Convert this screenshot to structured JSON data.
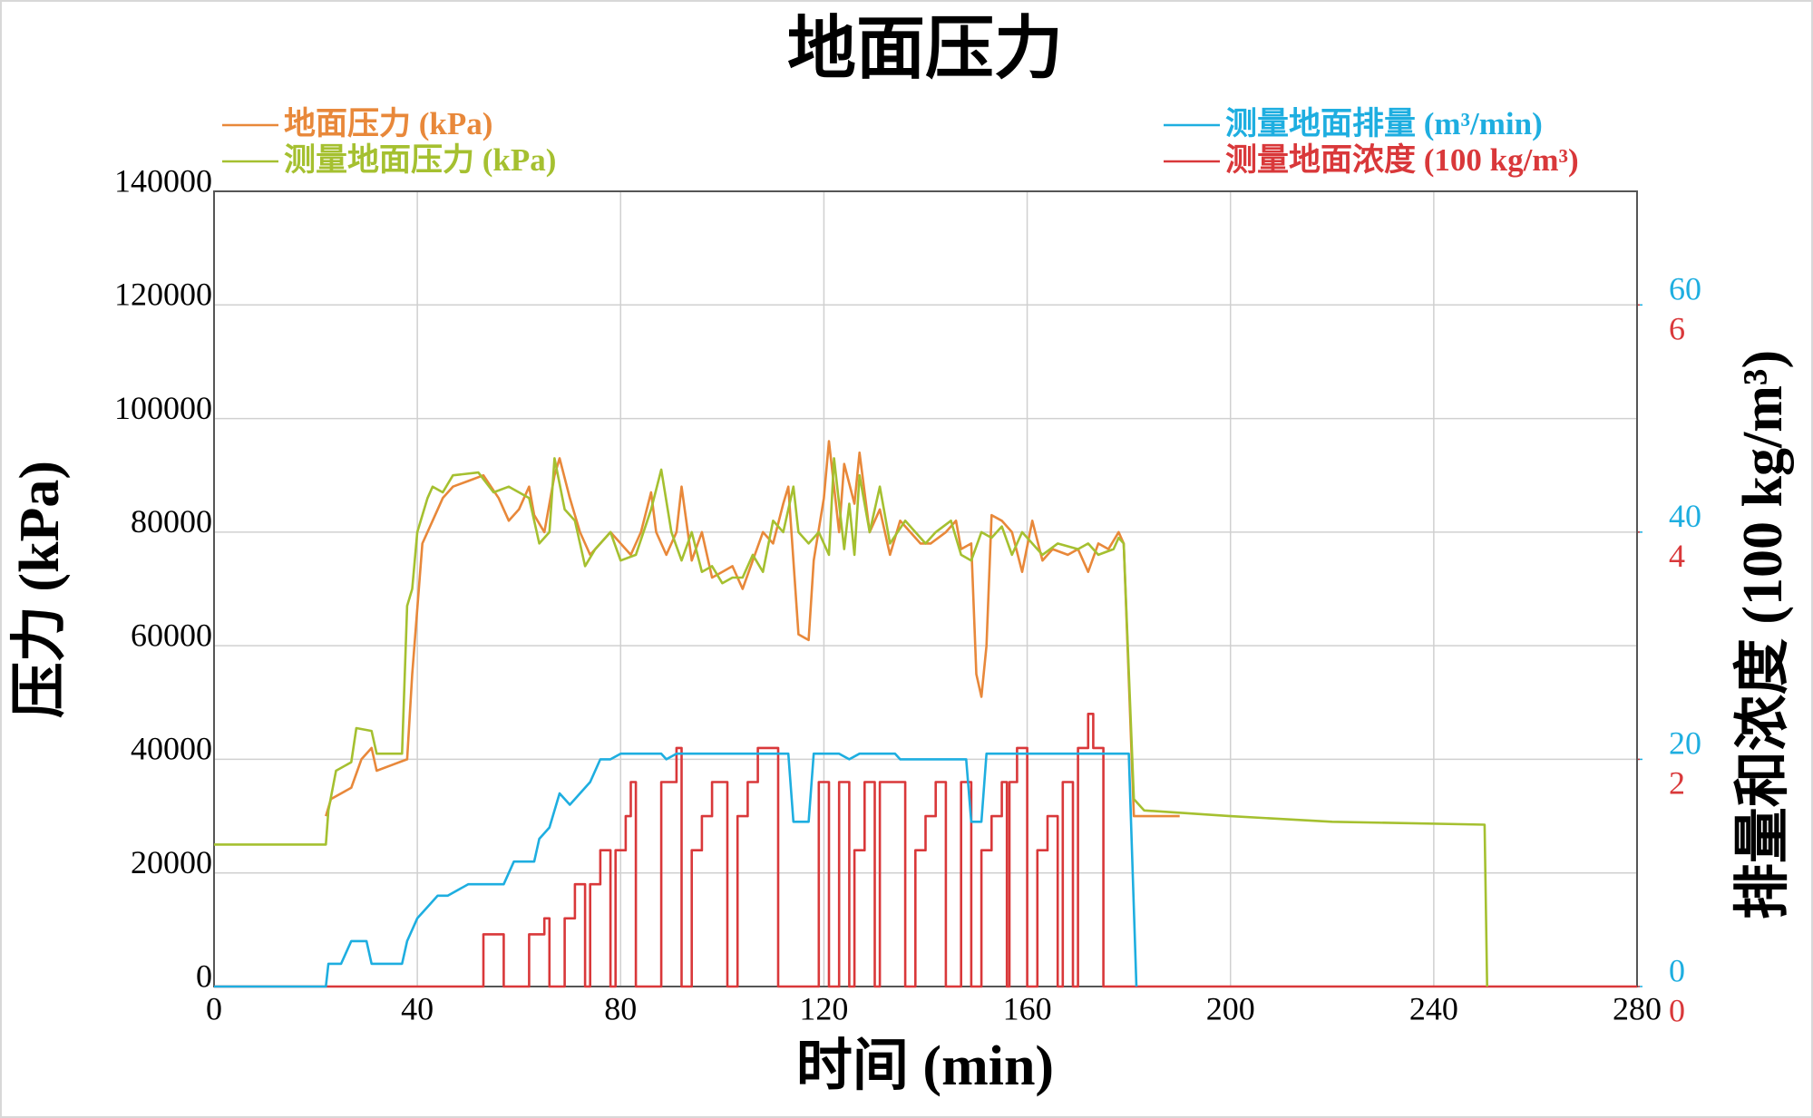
{
  "chart_data": {
    "type": "line",
    "title": "地面压力",
    "xlabel": "时间 (min)",
    "ylabel": "压力 (kPa)",
    "y2label": "排量和浓度 (100 kg/m³)",
    "xlim": [
      0,
      280
    ],
    "xticks": [
      0,
      40,
      80,
      120,
      160,
      200,
      240,
      280
    ],
    "ylim": [
      0,
      140000
    ],
    "yticks": [
      0,
      20000,
      40000,
      60000,
      80000,
      100000,
      120000,
      140000
    ],
    "y2lim": [
      0,
      70
    ],
    "y2ticks": [
      0,
      20,
      40,
      60
    ],
    "y3lim": [
      0,
      7
    ],
    "y3ticks": [
      0,
      2,
      4,
      6
    ],
    "grid": true,
    "series": [
      {
        "name": "测量地面浓度 (100 kg/m³)",
        "color": "#d9383a",
        "axis": "y3",
        "x": [
          0,
          53,
          53,
          57,
          57,
          62,
          62,
          65,
          65,
          66,
          66,
          69,
          69,
          71,
          71,
          73,
          73,
          74,
          74,
          76,
          76,
          78,
          78,
          79,
          79,
          81,
          81,
          82,
          82,
          83,
          83,
          88,
          88,
          91,
          91,
          92,
          92,
          94,
          94,
          96,
          96,
          98,
          98,
          101,
          101,
          103,
          103,
          105,
          105,
          107,
          107,
          111,
          111,
          119,
          119,
          121,
          121,
          123,
          123,
          125,
          125,
          126,
          126,
          128,
          128,
          130,
          130,
          131,
          131,
          136,
          136,
          138,
          138,
          140,
          140,
          142,
          142,
          144,
          144,
          147,
          147,
          149,
          149,
          151,
          151,
          153,
          153,
          155,
          155,
          156,
          156,
          156.5,
          156.5,
          158,
          158,
          160,
          160,
          162,
          162,
          164,
          164,
          166,
          166,
          167,
          167,
          169,
          169,
          170,
          170,
          172,
          172,
          173,
          173,
          175,
          175,
          280
        ],
        "values": [
          0,
          0,
          0.46,
          0.46,
          0,
          0,
          0.46,
          0.46,
          0.6,
          0.6,
          0,
          0,
          0.6,
          0.6,
          0.9,
          0.9,
          0,
          0,
          0.9,
          0.9,
          1.2,
          1.2,
          0,
          0,
          1.2,
          1.2,
          1.5,
          1.5,
          1.8,
          1.8,
          0,
          0,
          1.8,
          1.8,
          2.1,
          2.1,
          0,
          0,
          1.2,
          1.2,
          1.5,
          1.5,
          1.8,
          1.8,
          0,
          0,
          1.5,
          1.5,
          1.8,
          1.8,
          2.1,
          2.1,
          0,
          0,
          1.8,
          1.8,
          0,
          0,
          1.8,
          1.8,
          0,
          0,
          1.2,
          1.2,
          1.8,
          1.8,
          0,
          0,
          1.8,
          1.8,
          0,
          0,
          1.2,
          1.2,
          1.5,
          1.5,
          1.8,
          1.8,
          0,
          0,
          1.8,
          1.8,
          0,
          0,
          1.2,
          1.2,
          1.5,
          1.5,
          1.8,
          1.8,
          0,
          0,
          1.8,
          1.8,
          2.1,
          2.1,
          0,
          0,
          1.2,
          1.2,
          1.5,
          1.5,
          0,
          0,
          1.8,
          1.8,
          0,
          0,
          2.1,
          2.1,
          2.4,
          2.4,
          2.1,
          2.1,
          0,
          0
        ]
      },
      {
        "name": "测量地面排量 (m³/min)",
        "color": "#1eaee0",
        "axis": "y2",
        "x": [
          0,
          22,
          22.5,
          25,
          27,
          30,
          31,
          37,
          38,
          40,
          42,
          44,
          46,
          50,
          57,
          59,
          63,
          64,
          66,
          68,
          70,
          72,
          74,
          76,
          78,
          80,
          88,
          89,
          91,
          113,
          114,
          117,
          118,
          123,
          125,
          127,
          134,
          135,
          148,
          149,
          151,
          152,
          180,
          181.5
        ],
        "values": [
          0,
          0,
          2,
          2,
          4,
          4,
          2,
          2,
          4,
          6,
          7,
          8,
          8,
          9,
          9,
          11,
          11,
          13,
          14,
          17,
          16,
          17,
          18,
          20,
          20,
          20.5,
          20.5,
          20,
          20.5,
          20.5,
          14.5,
          14.5,
          20.5,
          20.5,
          20,
          20.5,
          20.5,
          20,
          20,
          14.5,
          14.5,
          20.5,
          20.5,
          0
        ]
      },
      {
        "name": "地面压力 (kPa)",
        "color": "#e8883a",
        "x": [
          22,
          23,
          27,
          29,
          31,
          32,
          35,
          38,
          39,
          41,
          43,
          45,
          47,
          50,
          53,
          56,
          58,
          60,
          62,
          63,
          65,
          67,
          68,
          70,
          72,
          74,
          76,
          78,
          80,
          82,
          84,
          86,
          87,
          89,
          91,
          92,
          94,
          96,
          98,
          100,
          102,
          104,
          106,
          108,
          110,
          112,
          113,
          115,
          117,
          118,
          120,
          121,
          122,
          123,
          124,
          126,
          127,
          129,
          131,
          133,
          135,
          137,
          139,
          141,
          144,
          146,
          147,
          149,
          150,
          151,
          152,
          153,
          155,
          157,
          159,
          161,
          163,
          165,
          168,
          170,
          172,
          174,
          176,
          178,
          179,
          181,
          190
        ],
        "values": [
          30000,
          33000,
          35000,
          40000,
          42000,
          38000,
          39000,
          40000,
          55000,
          78000,
          82000,
          86000,
          88000,
          89000,
          90000,
          86000,
          82000,
          84000,
          88000,
          83000,
          80000,
          90000,
          93000,
          86000,
          80000,
          76000,
          78000,
          80000,
          78000,
          76000,
          80000,
          87000,
          80000,
          76000,
          80000,
          88000,
          75000,
          80000,
          72000,
          73000,
          74000,
          70000,
          75000,
          80000,
          78000,
          85000,
          88000,
          62000,
          61000,
          75000,
          86000,
          96000,
          88000,
          80000,
          92000,
          85000,
          94000,
          80000,
          84000,
          76000,
          82000,
          80000,
          78000,
          78000,
          80000,
          82000,
          77000,
          78000,
          55000,
          51000,
          60000,
          83000,
          82000,
          80000,
          73000,
          82000,
          75000,
          77000,
          76000,
          77000,
          73000,
          78000,
          77000,
          80000,
          78000,
          30000,
          30000
        ]
      },
      {
        "name": "测量地面压力 (kPa)",
        "color": "#a5c030",
        "x": [
          0,
          22,
          22.5,
          24,
          27,
          28,
          31,
          32,
          37,
          38,
          39,
          40,
          42,
          43,
          45,
          47,
          52,
          55,
          58,
          62,
          64,
          66,
          67,
          69,
          71,
          73,
          75,
          78,
          80,
          83,
          86,
          88,
          90,
          92,
          94,
          96,
          98,
          100,
          102,
          104,
          106,
          108,
          110,
          112,
          114,
          115,
          117,
          119,
          121,
          122,
          124,
          125,
          126,
          127,
          129,
          131,
          133,
          136,
          138,
          140,
          142,
          145,
          147,
          149,
          151,
          153,
          155,
          157,
          159,
          161,
          163,
          166,
          170,
          172,
          174,
          177,
          178,
          179,
          181,
          183,
          200,
          220,
          250,
          250.5
        ],
        "values": [
          25000,
          25000,
          31000,
          38000,
          39500,
          45500,
          45000,
          41000,
          41000,
          67000,
          70000,
          80000,
          86000,
          88000,
          87000,
          90000,
          90500,
          87000,
          88000,
          86000,
          78000,
          80000,
          93000,
          84000,
          82000,
          74000,
          77000,
          80000,
          75000,
          76000,
          84000,
          91000,
          80000,
          75000,
          80000,
          73000,
          74000,
          71000,
          72000,
          72000,
          76000,
          73000,
          82000,
          80000,
          88000,
          80000,
          78000,
          80000,
          76000,
          93000,
          77000,
          85000,
          76000,
          90000,
          80000,
          88000,
          78000,
          82000,
          80000,
          78000,
          80000,
          82000,
          76000,
          75000,
          80000,
          79000,
          81000,
          76000,
          80000,
          78000,
          76000,
          78000,
          77000,
          78000,
          76000,
          77000,
          79000,
          78000,
          33000,
          31000,
          30000,
          29000,
          28500,
          0
        ]
      }
    ],
    "legend": [
      {
        "corner": "upper left",
        "series": [
          2,
          3
        ]
      },
      {
        "corner": "upper right",
        "series": [
          1,
          0
        ]
      }
    ]
  }
}
